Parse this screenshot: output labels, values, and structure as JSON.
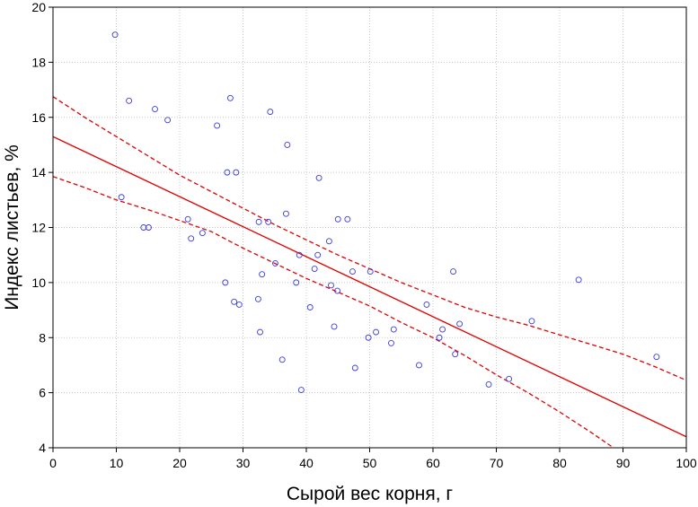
{
  "chart_data": {
    "type": "scatter",
    "xlabel": "Сырой вес корня, г",
    "ylabel": "Индекс листьев, %",
    "xlim": [
      0,
      100
    ],
    "ylim": [
      4,
      20
    ],
    "xticks": [
      0,
      10,
      20,
      30,
      40,
      50,
      60,
      70,
      80,
      90,
      100
    ],
    "yticks": [
      4,
      6,
      8,
      10,
      12,
      14,
      16,
      18,
      20
    ],
    "grid": true,
    "legend": "none",
    "colors": {
      "points": "#3a3ae0",
      "fit": "#e00000",
      "grid": "#c8c8c8"
    },
    "points": [
      {
        "x": 9.8,
        "y": 19.0
      },
      {
        "x": 10.8,
        "y": 13.1
      },
      {
        "x": 12.0,
        "y": 16.6
      },
      {
        "x": 14.3,
        "y": 12.0
      },
      {
        "x": 15.1,
        "y": 12.0
      },
      {
        "x": 16.1,
        "y": 16.3
      },
      {
        "x": 18.1,
        "y": 15.9
      },
      {
        "x": 21.3,
        "y": 12.3
      },
      {
        "x": 21.8,
        "y": 11.6
      },
      {
        "x": 23.6,
        "y": 11.8
      },
      {
        "x": 25.9,
        "y": 15.7
      },
      {
        "x": 27.2,
        "y": 10.0
      },
      {
        "x": 27.5,
        "y": 14.0
      },
      {
        "x": 28.0,
        "y": 16.7
      },
      {
        "x": 28.6,
        "y": 9.3
      },
      {
        "x": 28.9,
        "y": 14.0
      },
      {
        "x": 29.4,
        "y": 9.2
      },
      {
        "x": 32.4,
        "y": 9.4
      },
      {
        "x": 32.5,
        "y": 12.2
      },
      {
        "x": 32.7,
        "y": 8.2
      },
      {
        "x": 33.0,
        "y": 10.3
      },
      {
        "x": 34.0,
        "y": 12.2
      },
      {
        "x": 34.3,
        "y": 16.2
      },
      {
        "x": 35.1,
        "y": 10.7
      },
      {
        "x": 36.2,
        "y": 7.2
      },
      {
        "x": 36.8,
        "y": 12.5
      },
      {
        "x": 37.0,
        "y": 15.0
      },
      {
        "x": 38.4,
        "y": 10.0
      },
      {
        "x": 38.9,
        "y": 11.0
      },
      {
        "x": 39.2,
        "y": 6.1
      },
      {
        "x": 40.6,
        "y": 9.1
      },
      {
        "x": 41.3,
        "y": 10.5
      },
      {
        "x": 41.8,
        "y": 11.0
      },
      {
        "x": 42.0,
        "y": 13.8
      },
      {
        "x": 43.6,
        "y": 11.5
      },
      {
        "x": 43.9,
        "y": 9.9
      },
      {
        "x": 44.4,
        "y": 8.4
      },
      {
        "x": 44.9,
        "y": 9.7
      },
      {
        "x": 45.0,
        "y": 12.3
      },
      {
        "x": 46.5,
        "y": 12.3
      },
      {
        "x": 47.3,
        "y": 10.4
      },
      {
        "x": 47.7,
        "y": 6.9
      },
      {
        "x": 49.8,
        "y": 8.0
      },
      {
        "x": 50.1,
        "y": 10.4
      },
      {
        "x": 51.0,
        "y": 8.2
      },
      {
        "x": 53.4,
        "y": 7.8
      },
      {
        "x": 53.8,
        "y": 8.3
      },
      {
        "x": 57.8,
        "y": 7.0
      },
      {
        "x": 59.0,
        "y": 9.2
      },
      {
        "x": 61.0,
        "y": 8.0
      },
      {
        "x": 61.5,
        "y": 8.3
      },
      {
        "x": 63.2,
        "y": 10.4
      },
      {
        "x": 63.5,
        "y": 7.4
      },
      {
        "x": 64.2,
        "y": 8.5
      },
      {
        "x": 68.8,
        "y": 6.3
      },
      {
        "x": 72.0,
        "y": 6.5
      },
      {
        "x": 75.6,
        "y": 8.6
      },
      {
        "x": 83.0,
        "y": 10.1
      },
      {
        "x": 95.3,
        "y": 7.3
      }
    ],
    "fit_line": {
      "x": [
        0,
        100
      ],
      "y": [
        15.3,
        4.4
      ]
    },
    "confidence_band": {
      "style": "dashed",
      "upper": {
        "x": [
          0,
          5,
          10,
          15,
          20,
          25,
          30,
          35,
          40,
          45,
          50,
          55,
          60,
          65,
          70,
          75,
          80,
          85,
          90,
          95,
          100
        ],
        "y": [
          16.75,
          16.0,
          15.3,
          14.6,
          13.9,
          13.3,
          12.7,
          12.1,
          11.55,
          11.0,
          10.5,
          10.0,
          9.55,
          9.1,
          8.75,
          8.45,
          8.1,
          7.75,
          7.4,
          6.95,
          6.45
        ]
      },
      "lower": {
        "x": [
          0,
          5,
          10,
          15,
          20,
          25,
          30,
          35,
          40,
          45,
          50,
          55,
          60,
          65,
          70,
          75,
          80,
          85,
          88.5
        ],
        "y": [
          13.85,
          13.45,
          13.0,
          12.65,
          12.25,
          11.85,
          11.25,
          10.7,
          10.15,
          9.65,
          9.15,
          8.55,
          8.0,
          7.35,
          6.65,
          6.0,
          5.3,
          4.55,
          4.0
        ]
      }
    }
  }
}
